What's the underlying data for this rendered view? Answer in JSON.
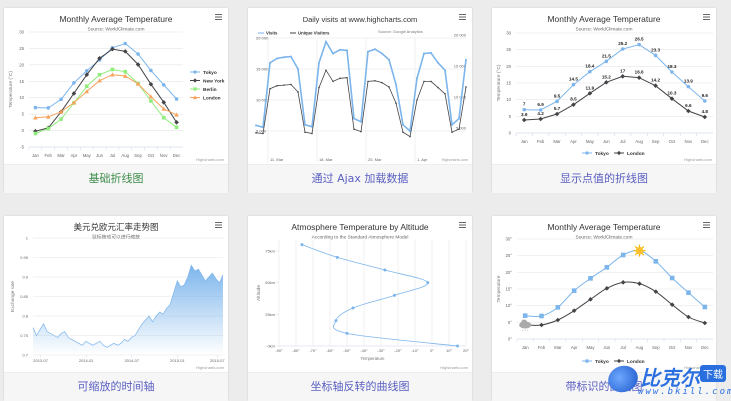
{
  "cards": [
    {
      "caption": "基础折线图",
      "chart": {
        "type": "line",
        "title": "Monthly Average Temperature",
        "subtitle": "Source: WorldClimate.com",
        "y_axis_title": "Temperature (°C)",
        "y_range": [
          -5,
          30
        ],
        "y_ticks": [
          -5,
          0,
          5,
          10,
          15,
          20,
          25,
          30
        ],
        "y_label_suffix": "",
        "categories": [
          "Jan",
          "Feb",
          "Mar",
          "Apr",
          "May",
          "Jun",
          "Jul",
          "Aug",
          "Sep",
          "Oct",
          "Nov",
          "Dec"
        ],
        "legend": "right",
        "credits": "Highcharts.com",
        "series": [
          {
            "name": "Tokyo",
            "color": "#7cb5ec",
            "marker": "circle",
            "values": [
              7.0,
              6.9,
              9.5,
              14.5,
              18.2,
              21.5,
              25.2,
              26.5,
              23.3,
              18.3,
              13.9,
              9.6
            ]
          },
          {
            "name": "New York",
            "color": "#434348",
            "marker": "diamond",
            "values": [
              -0.2,
              0.8,
              5.7,
              11.3,
              17.0,
              22.0,
              24.8,
              24.1,
              20.1,
              14.1,
              8.6,
              2.5
            ]
          },
          {
            "name": "Berlin",
            "color": "#90ed7d",
            "marker": "square",
            "values": [
              -0.9,
              0.6,
              3.5,
              8.4,
              13.5,
              17.0,
              18.6,
              17.9,
              14.3,
              9.0,
              3.9,
              1.0
            ]
          },
          {
            "name": "London",
            "color": "#f7a35c",
            "marker": "triangle",
            "values": [
              3.9,
              4.2,
              5.7,
              8.5,
              11.9,
              15.2,
              17.0,
              16.6,
              14.2,
              10.3,
              6.6,
              4.8
            ]
          }
        ]
      }
    },
    {
      "caption": "通过 Ajax 加载数据",
      "chart": {
        "type": "line",
        "title": "Daily visits at www.highcharts.com",
        "subtitle": "Source: Google Analytics",
        "y_range": [
          0,
          20000
        ],
        "y_tick_labels": [
          "5 000",
          "10 000",
          "15 000",
          "20 000"
        ],
        "y_ticks": [
          5000,
          10000,
          15000,
          20000
        ],
        "x_tick_labels": [
          "11. Mar",
          "18. Mar",
          "25. Mar",
          "1. Apr"
        ],
        "legend": "top-left",
        "credits": "Highcharts.com",
        "series": [
          {
            "name": "Visits",
            "color": "#7cb5ec",
            "marker": "circle",
            "values": [
              5900,
              5600,
              16000,
              16700,
              16900,
              17000,
              15000,
              6000,
              5700,
              16000,
              19400,
              17500,
              18100,
              18000,
              7000,
              6500,
              17800,
              18200,
              17500,
              16500,
              12500,
              6000,
              5000,
              13500,
              17500,
              17600,
              16000,
              14800,
              6000,
              7000,
              16500
            ]
          },
          {
            "name": "Unique Visitors",
            "color": "#434348",
            "marker": "circle",
            "values": [
              4700,
              4600,
              11800,
              12300,
              12400,
              12500,
              11300,
              4800,
              4600,
              12000,
              14800,
              13000,
              13500,
              13600,
              5300,
              4900,
              13000,
              13100,
              12800,
              12100,
              9500,
              4800,
              4100,
              10000,
              13000,
              13000,
              12000,
              11000,
              4800,
              5300,
              12100
            ]
          }
        ]
      }
    },
    {
      "caption": "显示点值的折线图",
      "chart": {
        "type": "line",
        "title": "Monthly Average Temperature",
        "subtitle": "Source: WorldClimate.com",
        "y_axis_title": "Temperature (°C)",
        "y_range": [
          0,
          30
        ],
        "y_ticks": [
          0,
          5,
          10,
          15,
          20,
          25,
          30
        ],
        "y_label_suffix": "",
        "categories": [
          "Jan",
          "Feb",
          "Mar",
          "Apr",
          "May",
          "Jun",
          "Jul",
          "Aug",
          "Sep",
          "Oct",
          "Nov",
          "Dec"
        ],
        "legend": "bottom",
        "data_labels": true,
        "credits": "Highcharts.com",
        "series": [
          {
            "name": "Tokyo",
            "color": "#7cb5ec",
            "marker": "circle",
            "values": [
              7.0,
              6.9,
              9.5,
              14.5,
              18.4,
              21.5,
              25.2,
              26.5,
              23.3,
              18.3,
              13.9,
              9.6
            ]
          },
          {
            "name": "London",
            "color": "#434348",
            "marker": "diamond",
            "values": [
              3.9,
              4.2,
              5.7,
              8.5,
              11.9,
              15.2,
              17.0,
              16.6,
              14.2,
              10.3,
              6.6,
              4.8
            ]
          }
        ]
      }
    },
    {
      "caption": "可缩放的时间轴",
      "chart": {
        "type": "area",
        "title": "美元兑欧元汇率走势图",
        "subtitle": "鼠标拖动可以进行缩放",
        "y_axis_title": "Exchange rate",
        "y_range": [
          0.7,
          1
        ],
        "y_ticks": [
          0.7,
          0.75,
          0.8,
          0.85,
          0.9,
          0.95,
          1
        ],
        "x_tick_labels": [
          "2013-07",
          "2014-01",
          "2014-07",
          "2015-01",
          "2015-07"
        ],
        "credits": "Highcharts.com",
        "color": "#7cb5ec",
        "values": [
          0.77,
          0.75,
          0.765,
          0.78,
          0.76,
          0.755,
          0.75,
          0.745,
          0.755,
          0.76,
          0.745,
          0.74,
          0.735,
          0.73,
          0.725,
          0.735,
          0.73,
          0.725,
          0.73,
          0.735,
          0.725,
          0.72,
          0.725,
          0.73,
          0.725,
          0.73,
          0.74,
          0.735,
          0.745,
          0.75,
          0.765,
          0.78,
          0.79,
          0.8,
          0.785,
          0.8,
          0.81,
          0.805,
          0.82,
          0.83,
          0.86,
          0.89,
          0.875,
          0.88,
          0.9,
          0.93,
          0.915,
          0.92,
          0.905,
          0.89,
          0.9,
          0.91,
          0.895,
          0.885,
          0.905
        ]
      }
    },
    {
      "caption": "坐标轴反转的曲线图",
      "chart": {
        "type": "spline-inverted",
        "title": "Atmosphere Temperature by Altitude",
        "subtitle": "According to the Standard Atmosphere Model",
        "x_axis_title": "Temperature",
        "y_axis_title": "Altitude",
        "temp_range": [
          -90,
          20
        ],
        "temp_ticks": [
          -90,
          -80,
          -70,
          -60,
          -50,
          -40,
          -30,
          -20,
          -10,
          0,
          10,
          20
        ],
        "temp_suffix": "°",
        "altitude_range": [
          0,
          80
        ],
        "altitude_ticks": [
          0,
          25,
          50,
          75
        ],
        "altitude_suffix": "km",
        "credits": "Highcharts.com",
        "color": "#7cb5ec",
        "points": [
          [
            0,
            15
          ],
          [
            10,
            -50
          ],
          [
            20,
            -56.5
          ],
          [
            30,
            -46.5
          ],
          [
            40,
            -22.1
          ],
          [
            50,
            -2.5
          ],
          [
            60,
            -27.7
          ],
          [
            70,
            -55.7
          ],
          [
            80,
            -76.5
          ]
        ]
      }
    },
    {
      "caption": "带标识的曲线图",
      "chart": {
        "type": "spline",
        "title": "Monthly Average Temperature",
        "subtitle": "Source: WorldClimate.com",
        "y_axis_title": "Temperature",
        "y_range": [
          0,
          30
        ],
        "y_ticks": [
          0,
          5,
          10,
          15,
          20,
          25,
          30
        ],
        "y_label_suffix": "°",
        "categories": [
          "Jan",
          "Feb",
          "Mar",
          "Apr",
          "May",
          "Jun",
          "Jul",
          "Aug",
          "Sep",
          "Oct",
          "Nov",
          "Dec"
        ],
        "legend": "bottom",
        "credits": "Highcharts.com",
        "series": [
          {
            "name": "Tokyo",
            "color": "#7cb5ec",
            "marker": "square",
            "special": {
              "index": 7,
              "icon": "sun-icon"
            },
            "values": [
              7.0,
              6.9,
              9.5,
              14.5,
              18.2,
              21.5,
              25.2,
              26.5,
              23.3,
              18.3,
              13.9,
              9.6
            ]
          },
          {
            "name": "London",
            "color": "#434348",
            "marker": "diamond",
            "special": {
              "index": 0,
              "icon": "snow-cloud-icon"
            },
            "values": [
              4.2,
              4.2,
              5.7,
              8.5,
              11.9,
              15.2,
              17.0,
              16.6,
              14.2,
              10.3,
              6.6,
              4.8
            ]
          }
        ]
      }
    }
  ],
  "watermark": {
    "name": "比克尔",
    "badge": "下载",
    "url": "www.bkill.com"
  }
}
